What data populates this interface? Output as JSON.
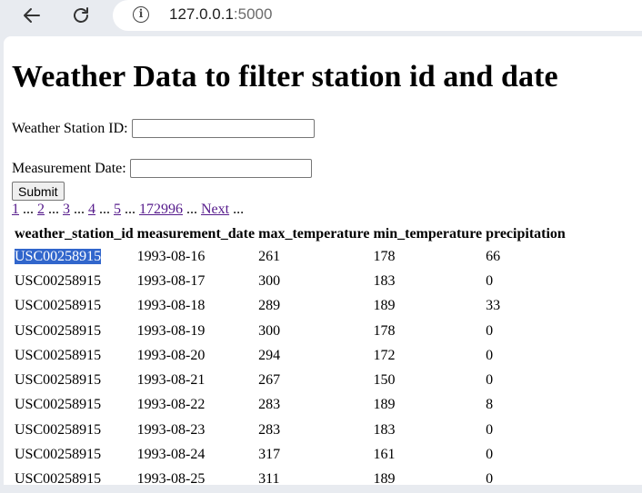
{
  "browser": {
    "url_host": "127.0.0.1",
    "url_port": ":5000"
  },
  "page": {
    "title": "Weather Data to filter station id and date",
    "station_label": "Weather Station ID:",
    "station_value": "",
    "date_label": "Measurement Date:",
    "date_value": "",
    "submit_label": "Submit"
  },
  "pagination": {
    "pages": [
      "1",
      "2",
      "3",
      "4",
      "5"
    ],
    "separator": " ... ",
    "last_page": "172996",
    "next_label": "Next",
    "trailing": " ..."
  },
  "table": {
    "headers": [
      "weather_station_id",
      "measurement_date",
      "max_temperature",
      "min_temperature",
      "precipitation"
    ],
    "rows": [
      [
        "USC00258915",
        "1993-08-16",
        "261",
        "178",
        "66"
      ],
      [
        "USC00258915",
        "1993-08-17",
        "300",
        "183",
        "0"
      ],
      [
        "USC00258915",
        "1993-08-18",
        "289",
        "189",
        "33"
      ],
      [
        "USC00258915",
        "1993-08-19",
        "300",
        "178",
        "0"
      ],
      [
        "USC00258915",
        "1993-08-20",
        "294",
        "172",
        "0"
      ],
      [
        "USC00258915",
        "1993-08-21",
        "267",
        "150",
        "0"
      ],
      [
        "USC00258915",
        "1993-08-22",
        "283",
        "189",
        "8"
      ],
      [
        "USC00258915",
        "1993-08-23",
        "283",
        "183",
        "0"
      ],
      [
        "USC00258915",
        "1993-08-24",
        "317",
        "161",
        "0"
      ],
      [
        "USC00258915",
        "1993-08-25",
        "311",
        "189",
        "0"
      ]
    ]
  }
}
